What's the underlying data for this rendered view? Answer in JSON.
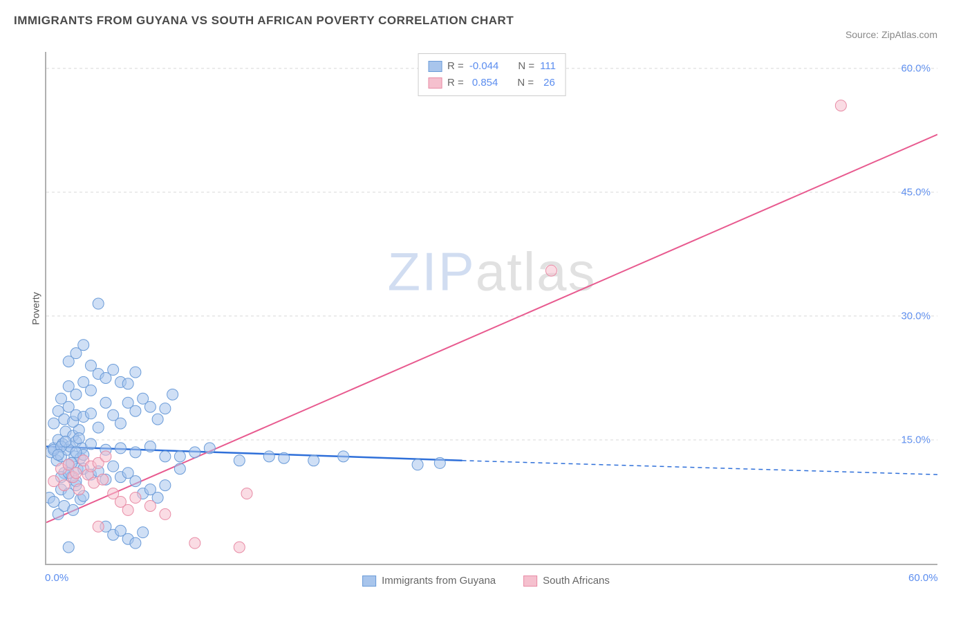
{
  "title": "IMMIGRANTS FROM GUYANA VS SOUTH AFRICAN POVERTY CORRELATION CHART",
  "source_label": "Source: ZipAtlas.com",
  "watermark_zip": "ZIP",
  "watermark_atlas": "atlas",
  "y_axis_label": "Poverty",
  "chart": {
    "type": "scatter",
    "xlim": [
      0,
      60
    ],
    "ylim": [
      0,
      62
    ],
    "x_ticks": [
      0.0,
      60.0
    ],
    "x_tick_labels": [
      "0.0%",
      "60.0%"
    ],
    "y_ticks": [
      15.0,
      30.0,
      45.0,
      60.0
    ],
    "y_tick_labels": [
      "15.0%",
      "30.0%",
      "45.0%",
      "60.0%"
    ],
    "grid_color": "#d8d8d8",
    "axis_color": "#b0b0b0",
    "tick_label_color": "#5b8def",
    "background_color": "#ffffff",
    "marker_radius": 8,
    "marker_opacity": 0.55,
    "series": [
      {
        "name": "Immigrants from Guyana",
        "label": "Immigrants from Guyana",
        "color_fill": "#a8c5ec",
        "color_stroke": "#6a9bd8",
        "r_value": "-0.044",
        "n_value": "111",
        "line_solid": {
          "x1": 0,
          "y1": 14.2,
          "x2": 28,
          "y2": 12.5
        },
        "line_dashed": {
          "x1": 28,
          "y1": 12.5,
          "x2": 60,
          "y2": 10.8
        },
        "line_color": "#2e6fd9",
        "line_width": 2.5,
        "points": [
          [
            0.3,
            13.5
          ],
          [
            0.5,
            14.0
          ],
          [
            0.7,
            12.5
          ],
          [
            0.8,
            15.0
          ],
          [
            1.0,
            13.0
          ],
          [
            1.1,
            14.5
          ],
          [
            1.2,
            11.0
          ],
          [
            1.3,
            16.0
          ],
          [
            1.4,
            13.8
          ],
          [
            1.5,
            12.0
          ],
          [
            1.6,
            14.2
          ],
          [
            1.7,
            10.5
          ],
          [
            1.8,
            15.5
          ],
          [
            1.9,
            13.0
          ],
          [
            2.0,
            14.8
          ],
          [
            2.1,
            11.5
          ],
          [
            2.2,
            16.2
          ],
          [
            2.3,
            12.8
          ],
          [
            2.4,
            14.0
          ],
          [
            2.5,
            13.2
          ],
          [
            0.5,
            17.0
          ],
          [
            0.8,
            18.5
          ],
          [
            1.2,
            17.5
          ],
          [
            1.5,
            19.0
          ],
          [
            1.8,
            17.2
          ],
          [
            2.0,
            18.0
          ],
          [
            2.5,
            17.8
          ],
          [
            3.0,
            18.2
          ],
          [
            3.5,
            16.5
          ],
          [
            1.0,
            20.0
          ],
          [
            1.5,
            21.5
          ],
          [
            2.0,
            20.5
          ],
          [
            2.5,
            22.0
          ],
          [
            3.0,
            21.0
          ],
          [
            3.5,
            23.0
          ],
          [
            4.0,
            22.5
          ],
          [
            4.5,
            23.5
          ],
          [
            5.0,
            22.0
          ],
          [
            5.5,
            21.8
          ],
          [
            6.0,
            23.2
          ],
          [
            3.5,
            31.5
          ],
          [
            2.5,
            26.5
          ],
          [
            3.0,
            24.0
          ],
          [
            2.0,
            25.5
          ],
          [
            1.5,
            24.5
          ],
          [
            4.0,
            19.5
          ],
          [
            4.5,
            18.0
          ],
          [
            5.0,
            17.0
          ],
          [
            5.5,
            19.5
          ],
          [
            6.0,
            18.5
          ],
          [
            6.5,
            20.0
          ],
          [
            7.0,
            19.0
          ],
          [
            7.5,
            17.5
          ],
          [
            8.0,
            18.8
          ],
          [
            8.5,
            20.5
          ],
          [
            9.0,
            13.0
          ],
          [
            10.0,
            13.5
          ],
          [
            11.0,
            14.0
          ],
          [
            13.0,
            12.5
          ],
          [
            15.0,
            13.0
          ],
          [
            16.0,
            12.8
          ],
          [
            18.0,
            12.5
          ],
          [
            20.0,
            13.0
          ],
          [
            25.0,
            12.0
          ],
          [
            26.5,
            12.2
          ],
          [
            0.2,
            8.0
          ],
          [
            0.5,
            7.5
          ],
          [
            0.8,
            6.0
          ],
          [
            1.0,
            9.0
          ],
          [
            1.2,
            7.0
          ],
          [
            1.5,
            8.5
          ],
          [
            1.8,
            6.5
          ],
          [
            2.0,
            9.5
          ],
          [
            2.3,
            7.8
          ],
          [
            2.5,
            8.2
          ],
          [
            1.0,
            10.5
          ],
          [
            1.5,
            11.0
          ],
          [
            2.0,
            10.0
          ],
          [
            2.5,
            11.5
          ],
          [
            3.0,
            10.8
          ],
          [
            3.5,
            11.2
          ],
          [
            4.0,
            10.2
          ],
          [
            4.5,
            11.8
          ],
          [
            5.0,
            10.5
          ],
          [
            5.5,
            11.0
          ],
          [
            6.0,
            10.0
          ],
          [
            6.5,
            8.5
          ],
          [
            7.0,
            9.0
          ],
          [
            7.5,
            8.0
          ],
          [
            8.0,
            9.5
          ],
          [
            9.0,
            11.5
          ],
          [
            1.5,
            2.0
          ],
          [
            4.0,
            4.5
          ],
          [
            4.5,
            3.5
          ],
          [
            5.0,
            4.0
          ],
          [
            5.5,
            3.0
          ],
          [
            6.0,
            2.5
          ],
          [
            6.5,
            3.8
          ],
          [
            0.5,
            13.8
          ],
          [
            1.0,
            14.2
          ],
          [
            2.0,
            13.5
          ],
          [
            3.0,
            14.5
          ],
          [
            4.0,
            13.8
          ],
          [
            5.0,
            14.0
          ],
          [
            6.0,
            13.5
          ],
          [
            7.0,
            14.2
          ],
          [
            8.0,
            13.0
          ],
          [
            0.8,
            13.2
          ],
          [
            1.3,
            14.8
          ],
          [
            1.7,
            12.2
          ],
          [
            2.2,
            15.2
          ]
        ]
      },
      {
        "name": "South Africans",
        "label": "South Africans",
        "color_fill": "#f5c0ce",
        "color_stroke": "#e88ba5",
        "r_value": "0.854",
        "n_value": "26",
        "line_solid": {
          "x1": 0,
          "y1": 5.0,
          "x2": 60,
          "y2": 52.0
        },
        "line_dashed": null,
        "line_color": "#e85a8f",
        "line_width": 2,
        "points": [
          [
            0.5,
            10.0
          ],
          [
            1.0,
            11.5
          ],
          [
            1.2,
            9.5
          ],
          [
            1.5,
            12.0
          ],
          [
            1.8,
            10.5
          ],
          [
            2.0,
            11.0
          ],
          [
            2.2,
            9.0
          ],
          [
            2.5,
            12.5
          ],
          [
            2.8,
            10.8
          ],
          [
            3.0,
            11.8
          ],
          [
            3.2,
            9.8
          ],
          [
            3.5,
            12.2
          ],
          [
            3.8,
            10.2
          ],
          [
            4.0,
            13.0
          ],
          [
            4.5,
            8.5
          ],
          [
            5.0,
            7.5
          ],
          [
            5.5,
            6.5
          ],
          [
            6.0,
            8.0
          ],
          [
            7.0,
            7.0
          ],
          [
            8.0,
            6.0
          ],
          [
            3.5,
            4.5
          ],
          [
            10.0,
            2.5
          ],
          [
            13.0,
            2.0
          ],
          [
            13.5,
            8.5
          ],
          [
            34.0,
            35.5
          ],
          [
            53.5,
            55.5
          ]
        ]
      }
    ]
  },
  "legend_top": {
    "r_label": "R =",
    "n_label": "N ="
  },
  "legend_bottom": {
    "items": [
      "Immigrants from Guyana",
      "South Africans"
    ]
  }
}
